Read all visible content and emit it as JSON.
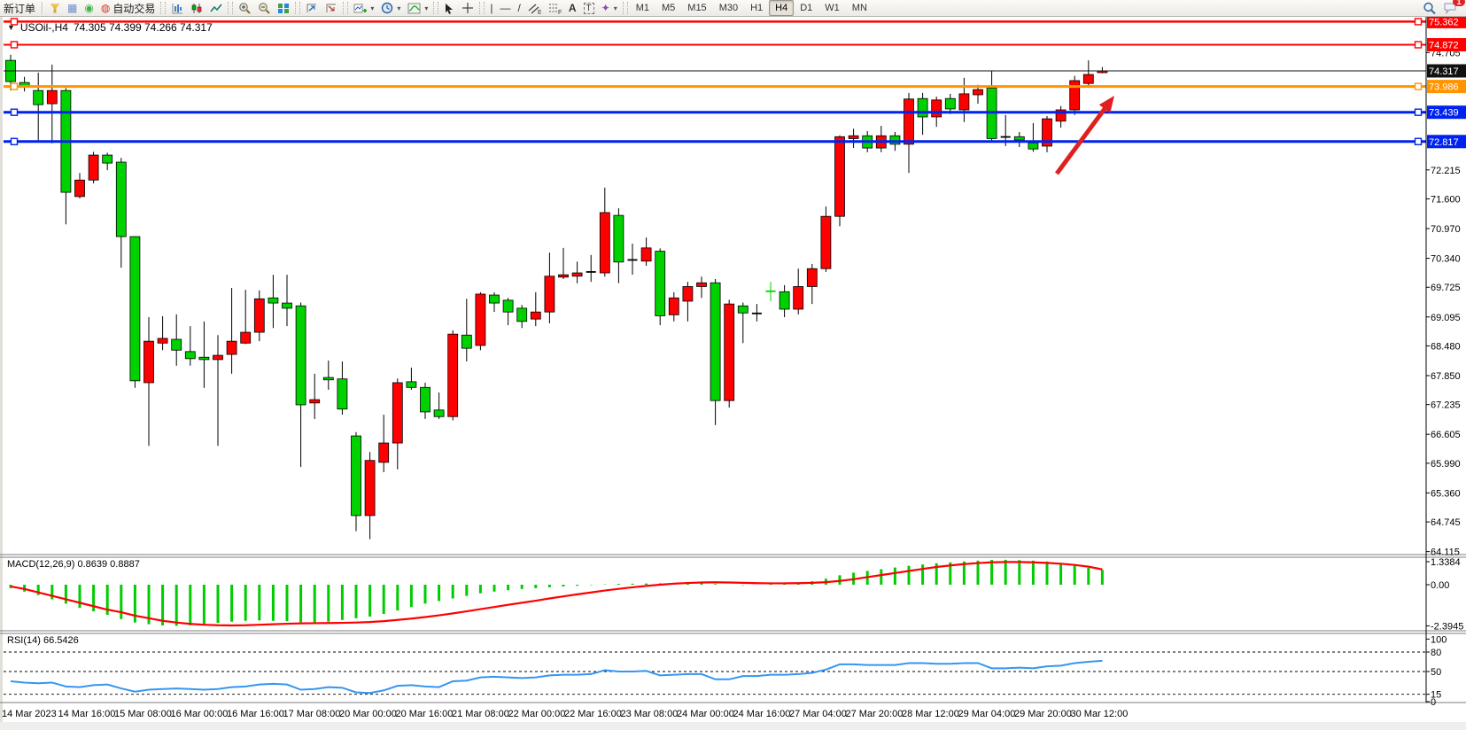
{
  "toolbar": {
    "new_order_label": "新订单",
    "autotrading_label": "自动交易",
    "timeframes": [
      "M1",
      "M5",
      "M15",
      "M30",
      "H1",
      "H4",
      "D1",
      "W1",
      "MN"
    ],
    "active_timeframe": "H4",
    "notification_count": "1",
    "icons": [
      "funnel-icon",
      "data-window-icon",
      "signal-icon",
      "autotrade-icon",
      "bar-chart-icon",
      "candlestick-chart-icon",
      "line-chart-icon",
      "zoom-in-icon",
      "zoom-out-icon",
      "tile-windows-icon",
      "arrange-charts-icon",
      "cascade-charts-icon",
      "new-chart-icon",
      "profiles-clock-icon",
      "indicators-icon",
      "cursor-icon",
      "crosshair-icon",
      "vertical-line-icon",
      "horizontal-line-icon",
      "trendline-icon",
      "channel-icon",
      "fibonacci-icon",
      "text-icon",
      "text-label-icon",
      "arrows-icon",
      "search-icon",
      "chat-icon"
    ]
  },
  "chart": {
    "symbol_title": "USOil-,H4",
    "ohlc_text": "74.305 74.399 74.266 74.317",
    "dropdown_glyph": "▼"
  },
  "chart_data": {
    "type": "candlestick",
    "title": "USOil-,H4",
    "candle_format": "[bodyTop, bodyBottom, high, low, dir] dir:0=down-green 1=up-red 2=doji-black 3=doji-green",
    "colors": {
      "up": "#ff0000",
      "down": "#00d200",
      "wick": "#000000",
      "doji_green": "#00d200"
    },
    "price_axis_ticks": [
      74.705,
      72.215,
      71.6,
      70.97,
      70.34,
      69.725,
      69.095,
      68.48,
      67.85,
      67.235,
      66.605,
      65.99,
      65.36,
      64.745,
      64.115
    ],
    "price_lines": [
      {
        "price": 75.362,
        "color": "#ff0000",
        "width": 2.5
      },
      {
        "price": 74.872,
        "color": "#ff0000",
        "width": 2
      },
      {
        "price": 74.317,
        "color": "#111111",
        "width": 1,
        "is_current": true
      },
      {
        "price": 73.986,
        "color": "#ff9400",
        "width": 3
      },
      {
        "price": 73.439,
        "color": "#0022ee",
        "width": 3
      },
      {
        "price": 72.817,
        "color": "#0022ee",
        "width": 3
      }
    ],
    "candles": [
      [
        74.54,
        74.09,
        74.66,
        73.9,
        0
      ],
      [
        74.07,
        73.98,
        74.19,
        73.88,
        0
      ],
      [
        73.9,
        73.6,
        74.28,
        72.81,
        0
      ],
      [
        73.9,
        73.62,
        74.45,
        72.78,
        1
      ],
      [
        73.9,
        71.74,
        73.95,
        71.06,
        0
      ],
      [
        72.0,
        71.65,
        72.15,
        71.61,
        1
      ],
      [
        72.53,
        72.0,
        72.6,
        71.93,
        1
      ],
      [
        72.53,
        72.36,
        72.58,
        72.21,
        0
      ],
      [
        72.38,
        70.8,
        72.47,
        70.14,
        0
      ],
      [
        70.8,
        67.74,
        70.8,
        67.59,
        0
      ],
      [
        68.58,
        67.7,
        69.09,
        66.36,
        1
      ],
      [
        68.64,
        68.54,
        69.11,
        68.39,
        1
      ],
      [
        68.62,
        68.39,
        69.15,
        68.06,
        0
      ],
      [
        68.36,
        68.21,
        68.9,
        68.06,
        0
      ],
      [
        68.24,
        68.19,
        69.0,
        67.59,
        0
      ],
      [
        68.28,
        68.19,
        68.71,
        66.36,
        1
      ],
      [
        68.58,
        68.3,
        69.71,
        67.89,
        1
      ],
      [
        68.77,
        68.54,
        69.67,
        68.52,
        1
      ],
      [
        69.48,
        68.77,
        69.66,
        68.58,
        1
      ],
      [
        69.5,
        69.39,
        69.99,
        68.86,
        0
      ],
      [
        69.39,
        69.28,
        69.99,
        68.9,
        0
      ],
      [
        69.33,
        67.23,
        69.4,
        65.91,
        0
      ],
      [
        67.34,
        67.27,
        67.89,
        66.93,
        1
      ],
      [
        67.81,
        67.76,
        68.17,
        67.55,
        0
      ],
      [
        67.78,
        67.14,
        68.15,
        67.02,
        0
      ],
      [
        66.57,
        64.88,
        66.65,
        64.55,
        0
      ],
      [
        66.05,
        64.88,
        66.23,
        64.38,
        1
      ],
      [
        66.42,
        66.01,
        67.02,
        65.8,
        1
      ],
      [
        67.7,
        66.42,
        67.79,
        65.86,
        1
      ],
      [
        67.72,
        67.6,
        68.02,
        67.55,
        0
      ],
      [
        67.6,
        67.08,
        67.7,
        66.93,
        0
      ],
      [
        67.12,
        66.98,
        67.49,
        66.93,
        0
      ],
      [
        68.73,
        66.98,
        68.81,
        66.9,
        1
      ],
      [
        68.71,
        68.43,
        69.48,
        68.15,
        0
      ],
      [
        69.58,
        68.49,
        69.62,
        68.39,
        1
      ],
      [
        69.56,
        69.39,
        69.62,
        69.2,
        0
      ],
      [
        69.45,
        69.2,
        69.5,
        68.92,
        0
      ],
      [
        69.28,
        69.0,
        69.35,
        68.86,
        0
      ],
      [
        69.2,
        69.05,
        69.62,
        68.9,
        1
      ],
      [
        69.96,
        69.2,
        70.46,
        68.96,
        1
      ],
      [
        69.99,
        69.94,
        70.56,
        69.9,
        1
      ],
      [
        70.03,
        69.96,
        70.27,
        69.81,
        1
      ],
      [
        70.08,
        70.02,
        70.41,
        69.84,
        2
      ],
      [
        71.31,
        70.03,
        71.84,
        69.95,
        1
      ],
      [
        71.25,
        70.26,
        71.4,
        69.81,
        0
      ],
      [
        70.33,
        70.28,
        70.65,
        69.99,
        2
      ],
      [
        70.56,
        70.28,
        70.78,
        70.18,
        1
      ],
      [
        70.49,
        69.12,
        70.55,
        68.92,
        0
      ],
      [
        69.5,
        69.14,
        69.62,
        69.0,
        1
      ],
      [
        69.74,
        69.43,
        69.84,
        69.0,
        1
      ],
      [
        69.82,
        69.74,
        69.95,
        69.5,
        1
      ],
      [
        69.82,
        67.32,
        69.9,
        66.8,
        0
      ],
      [
        69.37,
        67.32,
        69.46,
        67.17,
        1
      ],
      [
        69.33,
        69.18,
        69.4,
        68.54,
        0
      ],
      [
        69.19,
        69.15,
        69.37,
        69.0,
        2
      ],
      [
        69.66,
        69.62,
        69.84,
        69.43,
        3
      ],
      [
        69.63,
        69.26,
        69.77,
        69.09,
        0
      ],
      [
        69.74,
        69.26,
        70.12,
        69.15,
        1
      ],
      [
        70.12,
        69.74,
        70.22,
        69.37,
        1
      ],
      [
        71.23,
        70.12,
        71.44,
        70.05,
        1
      ],
      [
        72.92,
        71.23,
        72.95,
        71.02,
        1
      ],
      [
        72.94,
        72.88,
        73.09,
        72.68,
        1
      ],
      [
        72.94,
        72.68,
        73.04,
        72.59,
        0
      ],
      [
        72.94,
        72.68,
        73.15,
        72.59,
        1
      ],
      [
        72.94,
        72.76,
        73.02,
        72.62,
        0
      ],
      [
        73.72,
        72.76,
        73.85,
        72.15,
        1
      ],
      [
        73.73,
        73.34,
        73.85,
        72.96,
        0
      ],
      [
        73.7,
        73.34,
        73.77,
        73.13,
        1
      ],
      [
        73.73,
        73.51,
        73.83,
        73.4,
        0
      ],
      [
        73.83,
        73.49,
        74.17,
        73.23,
        1
      ],
      [
        73.92,
        73.81,
        74.02,
        73.62,
        1
      ],
      [
        73.95,
        72.88,
        74.32,
        72.83,
        0
      ],
      [
        72.93,
        72.9,
        73.38,
        72.72,
        2
      ],
      [
        72.92,
        72.85,
        73.02,
        72.7,
        0
      ],
      [
        72.79,
        72.66,
        73.21,
        72.6,
        0
      ],
      [
        73.3,
        72.72,
        73.36,
        72.59,
        1
      ],
      [
        73.49,
        73.25,
        73.57,
        73.11,
        1
      ],
      [
        74.11,
        73.49,
        74.21,
        73.38,
        1
      ],
      [
        74.24,
        74.05,
        74.54,
        73.99,
        1
      ],
      [
        74.317,
        74.305,
        74.399,
        74.266,
        1
      ]
    ],
    "macd": {
      "label": "MACD(12,26,9) 0.8639 0.8887",
      "axis_ticks": [
        1.3384,
        0.0,
        -2.3945
      ],
      "histogram_color": "#00cc00",
      "signal_color": "#ff0000",
      "histogram": [
        -0.2,
        -0.4,
        -0.6,
        -0.85,
        -1.1,
        -1.35,
        -1.55,
        -1.75,
        -2.0,
        -2.2,
        -2.3,
        -2.37,
        -2.39,
        -2.36,
        -2.3,
        -2.22,
        -2.15,
        -2.1,
        -2.08,
        -2.1,
        -2.12,
        -2.18,
        -2.2,
        -2.15,
        -2.05,
        -1.95,
        -1.85,
        -1.7,
        -1.5,
        -1.3,
        -1.1,
        -0.95,
        -0.8,
        -0.65,
        -0.5,
        -0.4,
        -0.32,
        -0.25,
        -0.2,
        -0.15,
        -0.1,
        -0.06,
        -0.02,
        0.02,
        0.05,
        0.06,
        0.07,
        0.08,
        0.09,
        0.1,
        0.08,
        0.04,
        0.0,
        -0.02,
        0.0,
        0.04,
        0.08,
        0.12,
        0.2,
        0.35,
        0.55,
        0.7,
        0.8,
        0.9,
        1.0,
        1.1,
        1.18,
        1.25,
        1.3,
        1.35,
        1.4,
        1.44,
        1.45,
        1.43,
        1.4,
        1.35,
        1.25,
        1.12,
        0.98,
        0.8639
      ],
      "signal": [
        -0.1,
        -0.25,
        -0.45,
        -0.65,
        -0.85,
        -1.05,
        -1.25,
        -1.45,
        -1.6,
        -1.8,
        -1.95,
        -2.1,
        -2.2,
        -2.28,
        -2.33,
        -2.36,
        -2.37,
        -2.36,
        -2.33,
        -2.3,
        -2.27,
        -2.25,
        -2.24,
        -2.23,
        -2.22,
        -2.2,
        -2.17,
        -2.12,
        -2.05,
        -1.97,
        -1.88,
        -1.78,
        -1.67,
        -1.55,
        -1.42,
        -1.3,
        -1.17,
        -1.05,
        -0.93,
        -0.8,
        -0.68,
        -0.56,
        -0.45,
        -0.34,
        -0.24,
        -0.15,
        -0.07,
        0.0,
        0.06,
        0.1,
        0.13,
        0.14,
        0.13,
        0.11,
        0.09,
        0.08,
        0.08,
        0.09,
        0.11,
        0.15,
        0.22,
        0.32,
        0.44,
        0.56,
        0.68,
        0.8,
        0.92,
        1.03,
        1.12,
        1.2,
        1.26,
        1.3,
        1.32,
        1.32,
        1.3,
        1.27,
        1.22,
        1.15,
        1.05,
        0.8887
      ]
    },
    "rsi": {
      "label": "RSI(14) 66.5426",
      "line_color": "#3596f0",
      "level_lines": [
        80,
        50,
        15
      ],
      "axis_ticks": [
        100,
        80,
        50,
        15,
        0
      ],
      "values": [
        35,
        33,
        32,
        33,
        27,
        26,
        29,
        30,
        24,
        19,
        22,
        23,
        24,
        23,
        22,
        23,
        26,
        27,
        30,
        31,
        30,
        22,
        23,
        26,
        25,
        18,
        17,
        21,
        28,
        29,
        27,
        26,
        35,
        36,
        41,
        42,
        41,
        40,
        41,
        44,
        45,
        45,
        46,
        52,
        50,
        50,
        51,
        44,
        45,
        46,
        46,
        38,
        38,
        43,
        43,
        45,
        45,
        46,
        48,
        53,
        61,
        61,
        60,
        60,
        60,
        63,
        63,
        62,
        62,
        63,
        63,
        55,
        55,
        56,
        55,
        58,
        59,
        63,
        65,
        66.5
      ],
      "grid": "dashed"
    },
    "time_axis": [
      "14 Mar 2023",
      "14 Mar 16:00",
      "15 Mar 08:00",
      "16 Mar 00:00",
      "16 Mar 16:00",
      "17 Mar 08:00",
      "20 Mar 00:00",
      "20 Mar 16:00",
      "21 Mar 08:00",
      "22 Mar 00:00",
      "22 Mar 16:00",
      "23 Mar 08:00",
      "24 Mar 00:00",
      "24 Mar 16:00",
      "27 Mar 04:00",
      "27 Mar 20:00",
      "28 Mar 12:00",
      "29 Mar 04:00",
      "29 Mar 20:00",
      "30 Mar 12:00"
    ],
    "legend_position": "none"
  },
  "annotations": {
    "arrow": {
      "from": [
        1193,
        196
      ],
      "to": [
        1258,
        108
      ],
      "color": "#e02020",
      "width": 5
    }
  }
}
